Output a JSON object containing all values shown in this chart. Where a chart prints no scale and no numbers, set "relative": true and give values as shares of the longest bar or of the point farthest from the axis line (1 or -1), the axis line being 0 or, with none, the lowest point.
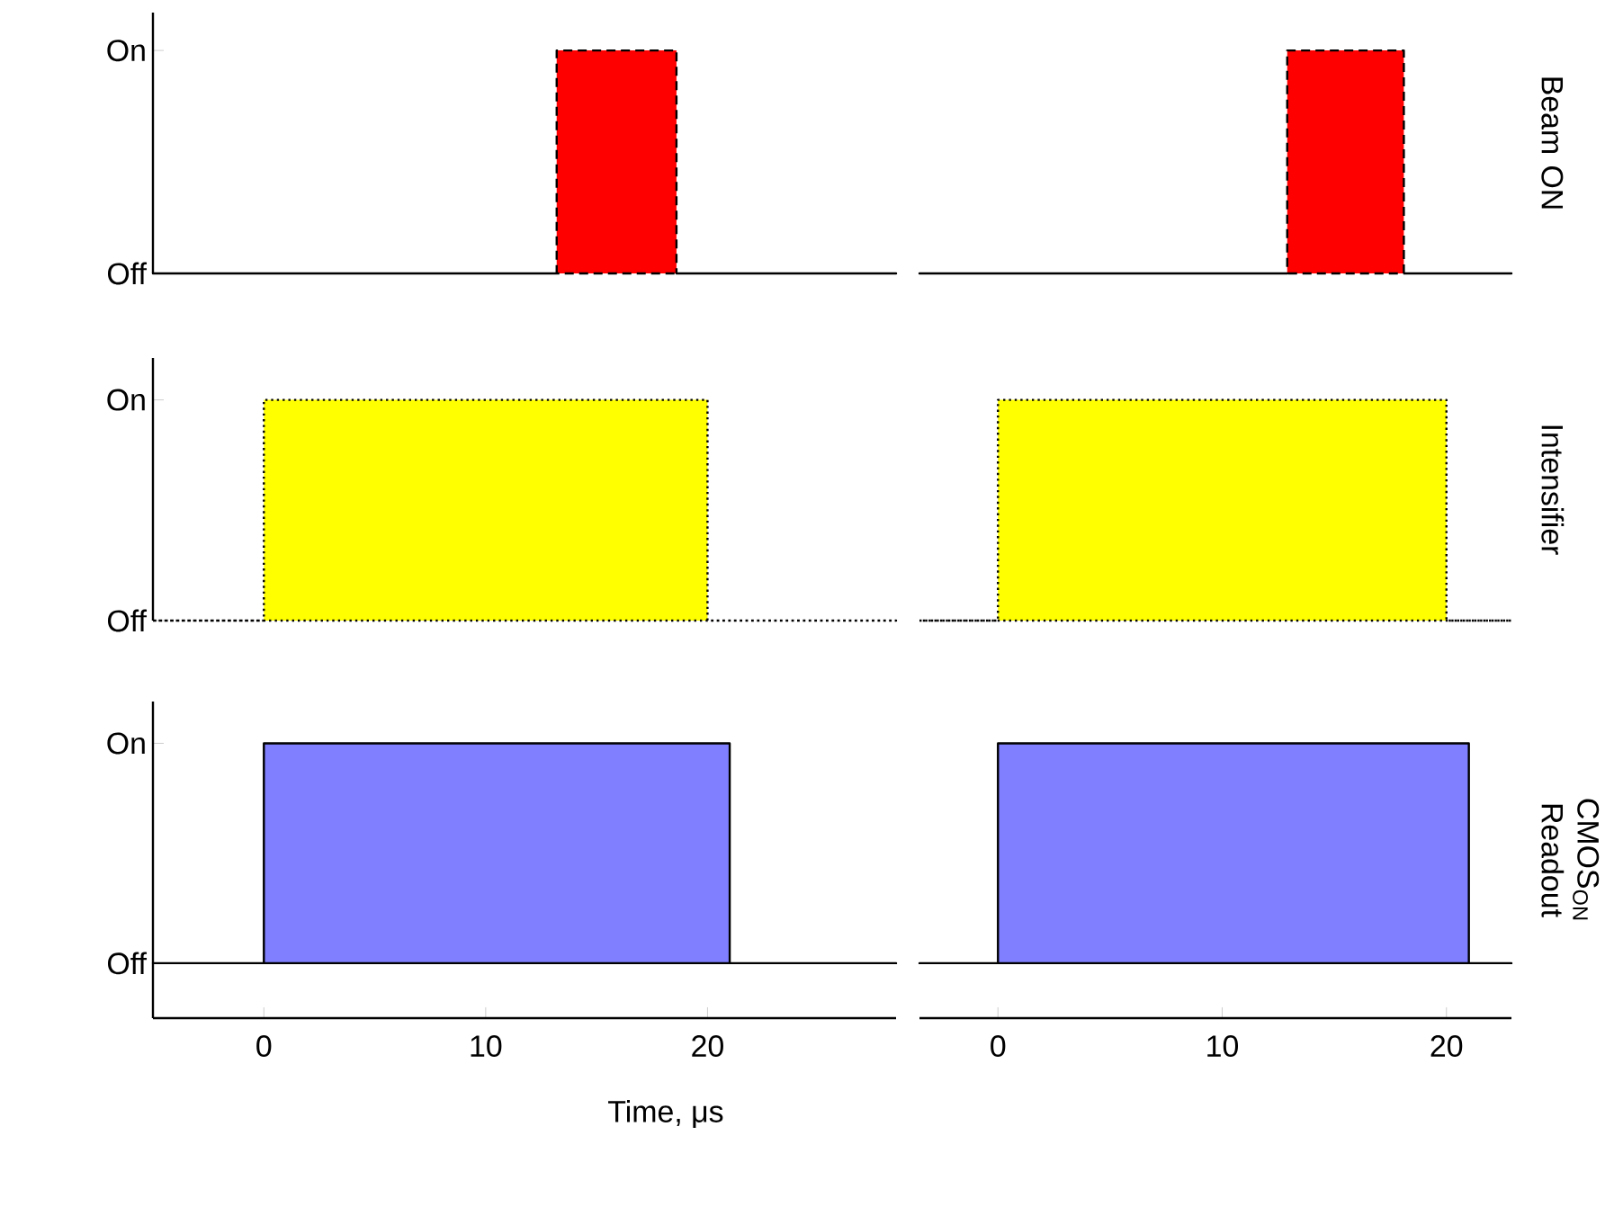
{
  "chart_data": [
    {
      "type": "area",
      "relative": true,
      "x": [
        -5.0,
        13.2,
        13.2,
        18.6,
        18.6,
        28.5
      ],
      "values": [
        0,
        0,
        1,
        1,
        0,
        0
      ],
      "color": "#ff0000",
      "line_style": "dashed",
      "xlim": [
        -5.0,
        28.5
      ],
      "annotations": [
        "Off",
        "On"
      ],
      "tick_labels": false
    },
    {
      "type": "area",
      "relative": true,
      "x": [
        -3.5,
        12.9,
        12.9,
        18.1,
        18.1,
        22.9
      ],
      "values": [
        0,
        0,
        1,
        1,
        0,
        0
      ],
      "color": "#ff0000",
      "line_style": "dashed",
      "xlim": [
        -3.5,
        22.9
      ],
      "ylabel": "Beam ON",
      "tick_labels": false
    },
    {
      "type": "area",
      "relative": true,
      "x": [
        -5.0,
        0,
        0,
        20,
        20,
        28.5
      ],
      "values": [
        0,
        0,
        1,
        1,
        0,
        0
      ],
      "color": "#ffff00",
      "line_style": "dotted",
      "xlim": [
        -5.0,
        28.5
      ],
      "annotations": [
        "Off",
        "On"
      ],
      "tick_labels": false
    },
    {
      "type": "area",
      "relative": true,
      "x": [
        -3.5,
        0,
        0,
        20,
        20,
        22.9
      ],
      "values": [
        0,
        0,
        1,
        1,
        0,
        0
      ],
      "color": "#ffff00",
      "line_style": "dotted",
      "xlim": [
        -3.5,
        22.9
      ],
      "ylabel": "Intensifier",
      "tick_labels": false
    },
    {
      "type": "area",
      "relative": true,
      "x": [
        -5.0,
        0,
        0,
        21.0,
        21.0,
        28.5
      ],
      "values": [
        0,
        0,
        1,
        1,
        0,
        0
      ],
      "color": "#7f7fff",
      "line_style": "solid",
      "xlim": [
        -5.0,
        28.5
      ],
      "xticks": [
        0,
        10,
        20
      ],
      "annotations": [
        "Off",
        "On"
      ],
      "xlabel": "Time, μs",
      "tick_labels": "x"
    },
    {
      "type": "area",
      "relative": true,
      "x": [
        -3.5,
        0,
        0,
        21.0,
        21.0,
        22.9
      ],
      "values": [
        0,
        0,
        1,
        1,
        0,
        0
      ],
      "color": "#7f7fff",
      "line_style": "solid",
      "xlim": [
        -3.5,
        22.9
      ],
      "xticks": [
        0,
        10,
        20
      ],
      "ylabel": "CMOS$_{ON}$ Readout",
      "tick_labels": "x"
    }
  ]
}
